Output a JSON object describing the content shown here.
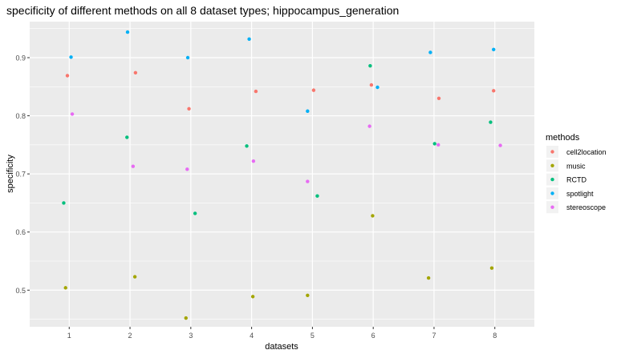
{
  "chart_data": {
    "type": "scatter",
    "title": "specificity of different methods on all 8 dataset types; hippocampus_generation",
    "xlabel": "datasets",
    "ylabel": "specificity",
    "categories": [
      "1",
      "2",
      "3",
      "4",
      "5",
      "6",
      "7",
      "8"
    ],
    "xlim": [
      0.35,
      8.65
    ],
    "ylim": [
      0.437,
      0.962
    ],
    "yticks": [
      0.5,
      0.6,
      0.7,
      0.8,
      0.9
    ],
    "ytick_labels": [
      "0.5",
      "0.6",
      "0.7",
      "0.8",
      "0.9"
    ],
    "grid": true,
    "legend": {
      "title": "methods",
      "position": "right"
    },
    "series": [
      {
        "name": "cell2location",
        "color": "#F8766D",
        "points": [
          {
            "x": 0.97,
            "y": 0.869
          },
          {
            "x": 2.09,
            "y": 0.874
          },
          {
            "x": 2.97,
            "y": 0.812
          },
          {
            "x": 4.07,
            "y": 0.842
          },
          {
            "x": 5.02,
            "y": 0.844
          },
          {
            "x": 5.97,
            "y": 0.853
          },
          {
            "x": 7.08,
            "y": 0.83
          },
          {
            "x": 7.98,
            "y": 0.843
          }
        ]
      },
      {
        "name": "music",
        "color": "#A3A500",
        "points": [
          {
            "x": 0.94,
            "y": 0.504
          },
          {
            "x": 2.08,
            "y": 0.523
          },
          {
            "x": 2.92,
            "y": 0.452
          },
          {
            "x": 4.02,
            "y": 0.489
          },
          {
            "x": 4.92,
            "y": 0.491
          },
          {
            "x": 5.99,
            "y": 0.628
          },
          {
            "x": 6.91,
            "y": 0.521
          },
          {
            "x": 7.95,
            "y": 0.538
          }
        ]
      },
      {
        "name": "RCTD",
        "color": "#00BF7D",
        "points": [
          {
            "x": 0.91,
            "y": 0.65
          },
          {
            "x": 1.95,
            "y": 0.763
          },
          {
            "x": 3.07,
            "y": 0.632
          },
          {
            "x": 3.92,
            "y": 0.748
          },
          {
            "x": 5.08,
            "y": 0.662
          },
          {
            "x": 5.95,
            "y": 0.886
          },
          {
            "x": 7.01,
            "y": 0.752
          },
          {
            "x": 7.93,
            "y": 0.789
          }
        ]
      },
      {
        "name": "spotlight",
        "color": "#00B0F6",
        "points": [
          {
            "x": 1.03,
            "y": 0.901
          },
          {
            "x": 1.96,
            "y": 0.944
          },
          {
            "x": 2.95,
            "y": 0.9
          },
          {
            "x": 3.96,
            "y": 0.932
          },
          {
            "x": 4.92,
            "y": 0.808
          },
          {
            "x": 6.07,
            "y": 0.849
          },
          {
            "x": 6.94,
            "y": 0.909
          },
          {
            "x": 7.98,
            "y": 0.914
          }
        ]
      },
      {
        "name": "stereoscope",
        "color": "#E76BF3",
        "points": [
          {
            "x": 1.05,
            "y": 0.803
          },
          {
            "x": 2.05,
            "y": 0.713
          },
          {
            "x": 2.94,
            "y": 0.708
          },
          {
            "x": 4.03,
            "y": 0.722
          },
          {
            "x": 4.92,
            "y": 0.687
          },
          {
            "x": 5.94,
            "y": 0.782
          },
          {
            "x": 7.07,
            "y": 0.75
          },
          {
            "x": 8.09,
            "y": 0.749
          }
        ]
      }
    ]
  }
}
